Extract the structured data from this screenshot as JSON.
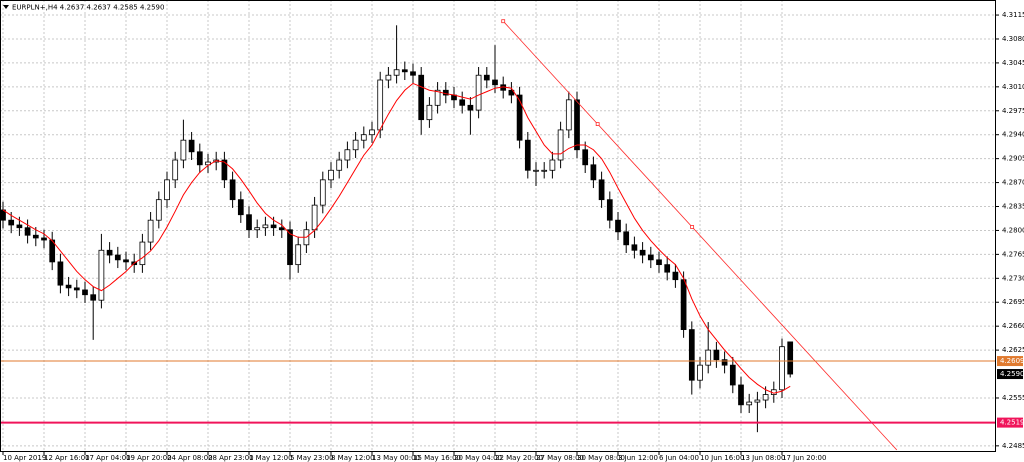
{
  "chart_data": {
    "type": "candlestick",
    "title": "EURPLN+,H4  4.2637 4.2637 4.2585 4.2590",
    "categories": [
      "10 Apr 2019",
      null,
      null,
      null,
      null,
      "12 Apr 16:00",
      null,
      null,
      null,
      null,
      "17 Apr 04:00",
      null,
      null,
      null,
      null,
      "19 Apr 20:00",
      null,
      null,
      null,
      null,
      "24 Apr 08:00",
      null,
      null,
      null,
      null,
      "28 Apr 23:00",
      null,
      null,
      null,
      null,
      "1 May 12:00",
      null,
      null,
      null,
      null,
      "5 May 23:00",
      null,
      null,
      null,
      null,
      "8 May 12:00",
      null,
      null,
      null,
      null,
      "13 May 00:00",
      null,
      null,
      null,
      null,
      "15 May 16:00",
      null,
      null,
      null,
      null,
      "20 May 04:00",
      null,
      null,
      null,
      null,
      "22 May 20:00",
      null,
      null,
      null,
      null,
      "27 May 08:00",
      null,
      null,
      null,
      null,
      "30 May 08:00",
      null,
      null,
      null,
      null,
      "3 Jun 12:00",
      null,
      null,
      null,
      null,
      "6 Jun 04:00",
      null,
      null,
      null,
      null,
      "10 Jun 16:00",
      null,
      null,
      null,
      null,
      "13 Jun 08:00",
      null,
      null,
      null,
      null,
      "17 Jun 20:00",
      null
    ],
    "open": [
      4.283,
      4.2815,
      4.2808,
      4.2804,
      4.2793,
      4.2789,
      4.2786,
      4.2754,
      4.272,
      4.2716,
      4.2713,
      4.2706,
      4.2698,
      4.2771,
      4.2764,
      4.2757,
      4.2754,
      4.275,
      4.2783,
      4.2815,
      4.2845,
      4.2874,
      4.2903,
      4.2932,
      4.2915,
      4.2896,
      4.29,
      4.2903,
      4.2874,
      4.2845,
      4.2823,
      4.2801,
      4.2804,
      4.2808,
      4.2804,
      4.2801,
      4.275,
      4.2779,
      4.2801,
      4.2837,
      4.2874,
      4.2888,
      4.2903,
      4.2918,
      4.2932,
      4.294,
      4.2947,
      4.302,
      4.3027,
      4.3035,
      4.3032,
      4.3027,
      4.2962,
      4.2983,
      4.3005,
      4.2998,
      4.2991,
      4.2983,
      4.2976,
      4.3027,
      4.302,
      4.3013,
      4.3005,
      4.2998,
      4.2932,
      4.2888,
      4.2888,
      4.2888,
      4.2903,
      4.2947,
      4.2991,
      4.2918,
      4.2896,
      4.2874,
      4.2845,
      4.2815,
      4.2798,
      4.2779,
      4.2771,
      4.2764,
      4.2757,
      4.275,
      4.2739,
      4.2728,
      4.2655,
      4.2581,
      4.2603,
      4.2625,
      4.2611,
      4.2603,
      4.2574,
      4.2545,
      4.2549,
      4.2552,
      4.256,
      4.2567,
      4.2637
    ],
    "high": [
      4.2842,
      4.2827,
      4.282,
      4.2816,
      4.2805,
      4.2801,
      4.2798,
      4.2766,
      4.2732,
      4.2728,
      4.2725,
      4.2718,
      4.2795,
      4.2783,
      4.2776,
      4.2769,
      4.2766,
      4.2795,
      4.2827,
      4.2857,
      4.2886,
      4.2915,
      4.2962,
      4.2944,
      4.2927,
      4.2912,
      4.2915,
      4.2915,
      4.2886,
      4.2857,
      4.2835,
      4.2816,
      4.282,
      4.282,
      4.2816,
      4.2813,
      4.2791,
      4.2813,
      4.2849,
      4.2886,
      4.29,
      4.2915,
      4.293,
      4.2944,
      4.2952,
      4.2959,
      4.3032,
      4.3039,
      4.31,
      4.3047,
      4.3044,
      4.3039,
      4.2995,
      4.3017,
      4.3017,
      4.301,
      4.3003,
      4.2995,
      4.3039,
      4.3039,
      4.3071,
      4.3025,
      4.3017,
      4.301,
      4.2944,
      4.29,
      4.29,
      4.2915,
      4.2959,
      4.3003,
      4.3003,
      4.293,
      4.2908,
      4.2886,
      4.2857,
      4.2827,
      4.281,
      4.2791,
      4.2783,
      4.2776,
      4.2769,
      4.2762,
      4.2751,
      4.274,
      4.2667,
      4.2615,
      4.2666,
      4.2637,
      4.2623,
      4.2615,
      4.2586,
      4.2561,
      4.2564,
      4.2572,
      4.2579,
      4.2642,
      4.2637
    ],
    "low": [
      4.2803,
      4.2796,
      4.2792,
      4.2781,
      4.2777,
      4.2774,
      4.2742,
      4.2708,
      4.2704,
      4.2701,
      4.2694,
      4.264,
      4.2686,
      4.2752,
      4.2745,
      4.2742,
      4.2738,
      4.2738,
      4.2771,
      4.2803,
      4.2833,
      4.2862,
      4.2891,
      4.2903,
      4.2884,
      4.2884,
      4.2888,
      4.2862,
      4.2833,
      4.2811,
      4.2789,
      4.2789,
      4.2792,
      4.2792,
      4.2789,
      4.2728,
      4.2738,
      4.2767,
      4.2789,
      4.2825,
      4.2862,
      4.2876,
      4.2891,
      4.2906,
      4.292,
      4.2928,
      4.2935,
      4.3008,
      4.3015,
      4.302,
      4.3015,
      4.294,
      4.295,
      4.2971,
      4.2986,
      4.2979,
      4.2971,
      4.294,
      4.2964,
      4.3008,
      4.3001,
      4.2993,
      4.2986,
      4.292,
      4.2876,
      4.2865,
      4.2876,
      4.2876,
      4.2891,
      4.2935,
      4.2906,
      4.2884,
      4.2862,
      4.2833,
      4.2803,
      4.2786,
      4.2767,
      4.2759,
      4.2752,
      4.2745,
      4.2738,
      4.2727,
      4.2716,
      4.2643,
      4.256,
      4.2569,
      4.2591,
      4.2599,
      4.2591,
      4.2562,
      4.2533,
      4.2533,
      4.2505,
      4.254,
      4.2548,
      4.2555,
      4.2585
    ],
    "close": [
      4.2815,
      4.2808,
      4.2804,
      4.2793,
      4.2789,
      4.2786,
      4.2754,
      4.272,
      4.2716,
      4.2713,
      4.2706,
      4.2698,
      4.2771,
      4.2764,
      4.2757,
      4.2754,
      4.275,
      4.2783,
      4.2815,
      4.2845,
      4.2874,
      4.2903,
      4.2932,
      4.2915,
      4.2896,
      4.29,
      4.2903,
      4.2874,
      4.2845,
      4.2823,
      4.2801,
      4.2804,
      4.2808,
      4.2804,
      4.2801,
      4.275,
      4.2779,
      4.2801,
      4.2837,
      4.2874,
      4.2888,
      4.2903,
      4.2918,
      4.2932,
      4.294,
      4.2947,
      4.302,
      4.3027,
      4.3035,
      4.3032,
      4.3027,
      4.2962,
      4.2983,
      4.3005,
      4.2998,
      4.2991,
      4.2983,
      4.2976,
      4.3027,
      4.302,
      4.3013,
      4.3005,
      4.2998,
      4.2932,
      4.2888,
      4.2888,
      4.2888,
      4.2903,
      4.2947,
      4.2991,
      4.2918,
      4.2896,
      4.2874,
      4.2845,
      4.2815,
      4.2798,
      4.2779,
      4.2771,
      4.2764,
      4.2757,
      4.275,
      4.2739,
      4.2728,
      4.2655,
      4.2581,
      4.2603,
      4.2625,
      4.2611,
      4.2603,
      4.2574,
      4.2545,
      4.2549,
      4.2552,
      4.256,
      4.2567,
      4.263,
      4.259
    ],
    "ma": {
      "color": "#ff0000",
      "values": [
        4.283,
        4.2822,
        4.2815,
        4.2808,
        4.2801,
        4.2795,
        4.2785,
        4.277,
        4.2755,
        4.274,
        4.2728,
        4.2718,
        4.2712,
        4.272,
        4.273,
        4.274,
        4.2752,
        4.276,
        4.277,
        4.2785,
        4.2805,
        4.2828,
        4.2852,
        4.287,
        4.2885,
        4.2895,
        4.2902,
        4.29,
        4.289,
        4.2875,
        4.2858,
        4.284,
        4.2825,
        4.2815,
        4.2808,
        4.2795,
        4.279,
        4.279,
        4.28,
        4.2815,
        4.2832,
        4.285,
        4.287,
        4.289,
        4.291,
        4.2925,
        4.2948,
        4.297,
        4.299,
        4.3005,
        4.3015,
        4.301,
        4.3005,
        4.3003,
        4.3,
        4.2998,
        4.2995,
        4.2992,
        4.2998,
        4.3003,
        4.3008,
        4.301,
        4.3008,
        4.299,
        4.2965,
        4.2945,
        4.2925,
        4.2912,
        4.2912,
        4.292,
        4.2925,
        4.2925,
        4.2918,
        4.2905,
        4.2885,
        4.2862,
        4.284,
        4.2818,
        4.28,
        4.2785,
        4.2772,
        4.276,
        4.275,
        4.273,
        4.27,
        4.2675,
        4.2655,
        4.264,
        4.2625,
        4.2612,
        4.2598,
        4.2585,
        4.2575,
        4.2567,
        4.2562,
        4.2565,
        4.2572
      ]
    },
    "trendline": {
      "color": "#ff2a2a",
      "x": [
        61,
        109
      ],
      "y": [
        4.3106,
        4.2479
      ]
    },
    "hlines": [
      {
        "value": 4.2609,
        "color": "#e07a2e"
      },
      {
        "value": 4.2519,
        "color": "#f0145a"
      }
    ],
    "last_price": {
      "value": 4.259,
      "label": "4.2590",
      "color": "#000000"
    },
    "ylim": [
      4.2476,
      4.3137
    ],
    "yticks": [
      4.3115,
      {
        "value": 4.308,
        "label": "4.3080"
      },
      4.3045,
      {
        "value": 4.301,
        "label": "4.3010"
      },
      4.2975,
      {
        "value": 4.294,
        "label": "4.2940"
      },
      4.2905,
      {
        "value": 4.287,
        "label": "4.2870"
      },
      4.2835,
      {
        "value": 4.28,
        "label": "4.2800"
      },
      4.2765,
      {
        "value": 4.273,
        "label": "4.2730"
      },
      4.2695,
      {
        "value": 4.266,
        "label": "4.2660"
      },
      4.2625,
      4.2555,
      4.2485
    ],
    "grid": true
  }
}
